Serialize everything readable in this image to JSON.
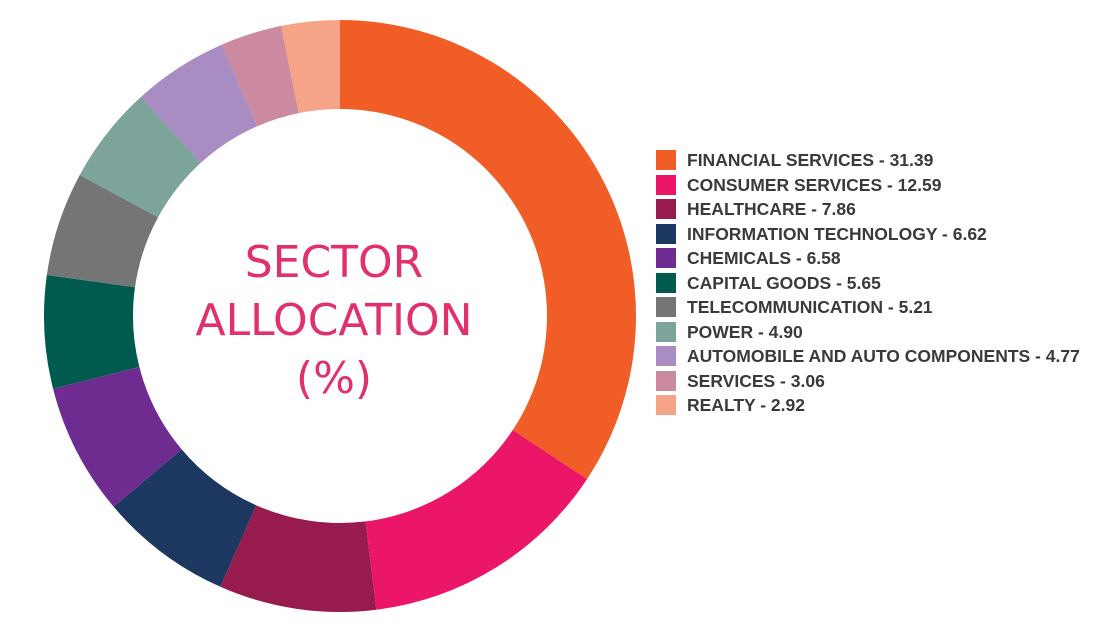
{
  "title_lines": [
    "SECTOR",
    "ALLOCATION",
    "(%)"
  ],
  "chart_data": {
    "type": "pie",
    "variant": "donut",
    "title": "SECTOR ALLOCATION (%)",
    "legend_position": "right",
    "categories": [
      "FINANCIAL SERVICES",
      "CONSUMER SERVICES",
      "HEALTHCARE",
      "INFORMATION TECHNOLOGY",
      "CHEMICALS",
      "CAPITAL GOODS",
      "TELECOMMUNICATION",
      "POWER",
      "AUTOMOBILE AND AUTO COMPONENTS",
      "SERVICES",
      "REALTY"
    ],
    "values": [
      31.39,
      12.59,
      7.86,
      6.62,
      6.58,
      5.65,
      5.21,
      4.9,
      4.77,
      3.06,
      2.92
    ],
    "value_labels": [
      "31.39",
      "12.59",
      "7.86",
      "6.62",
      "6.58",
      "5.65",
      "5.21",
      "4.90",
      "4.77",
      "3.06",
      "2.92"
    ],
    "colors": [
      "#f15d27",
      "#ec1669",
      "#981b4e",
      "#1c3760",
      "#6f2c90",
      "#005a4d",
      "#757575",
      "#7ca49a",
      "#a88cc2",
      "#cc8aa0",
      "#f6a488"
    ]
  },
  "legend": [
    "FINANCIAL SERVICES - 31.39",
    "CONSUMER SERVICES - 12.59",
    "HEALTHCARE - 7.86",
    "INFORMATION TECHNOLOGY - 6.62",
    "CHEMICALS - 6.58",
    "CAPITAL GOODS - 5.65",
    "TELECOMMUNICATION - 5.21",
    "POWER - 4.90",
    "AUTOMOBILE AND AUTO COMPONENTS - 4.77",
    "SERVICES - 3.06",
    "REALTY - 2.92"
  ]
}
